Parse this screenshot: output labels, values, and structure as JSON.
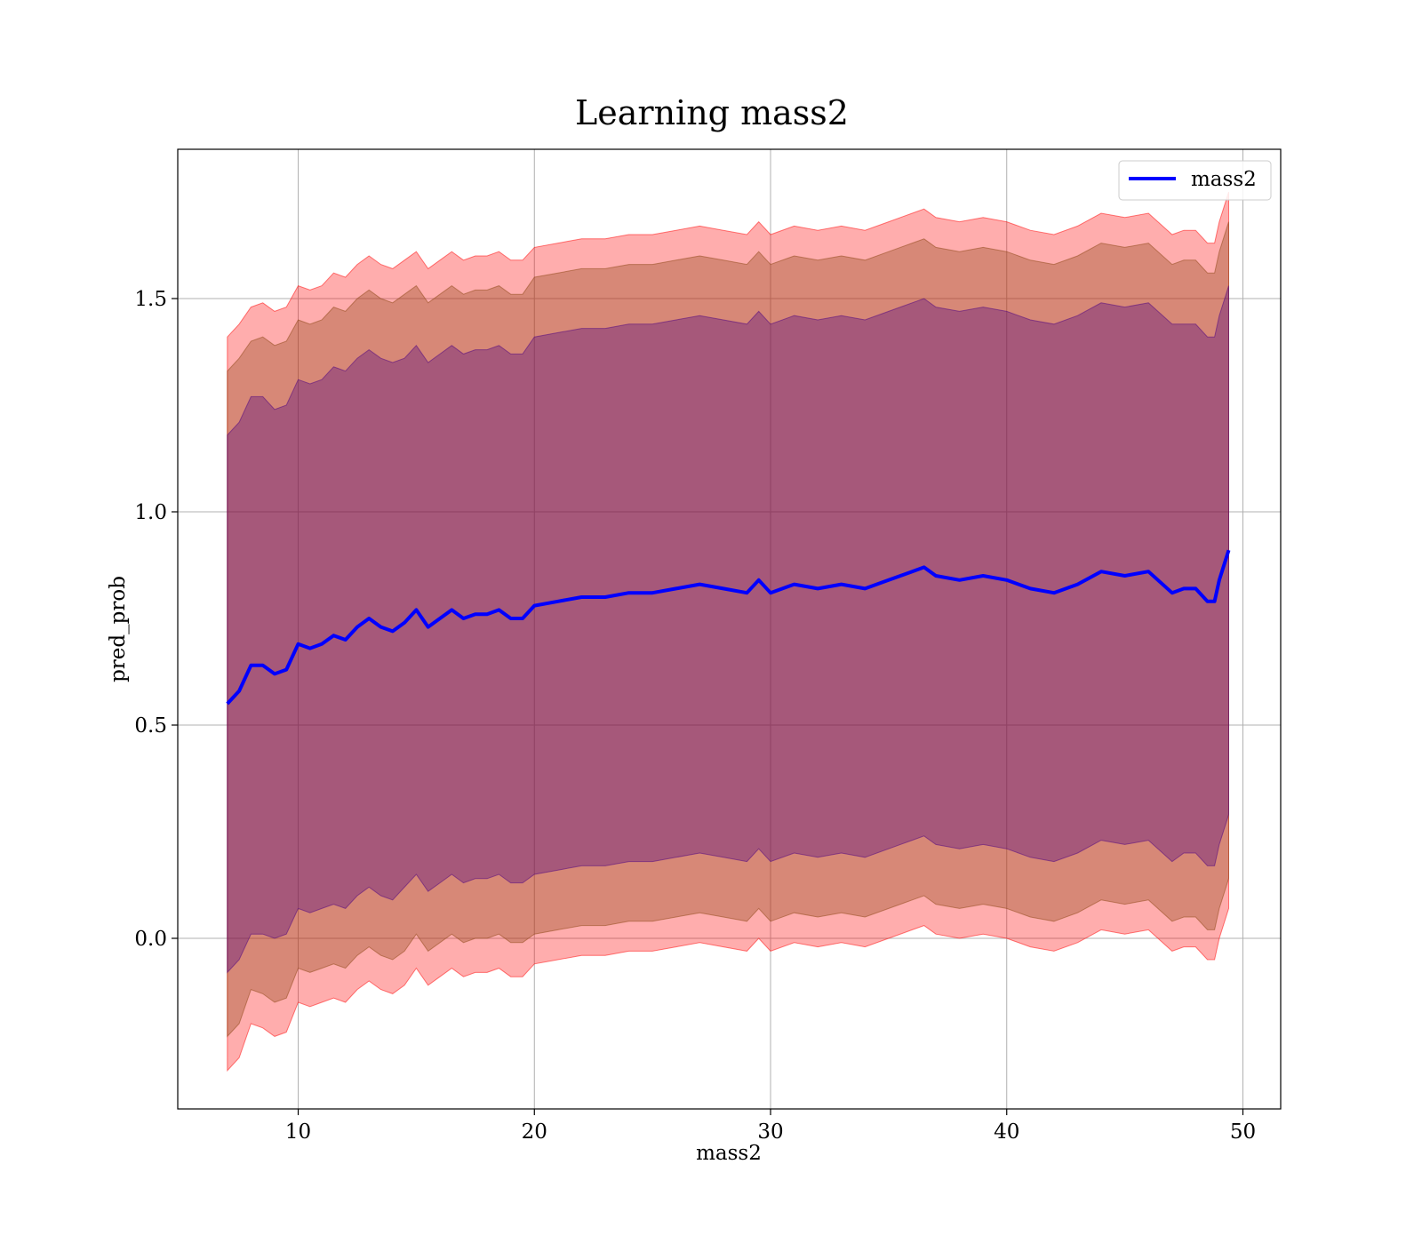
{
  "chart_data": {
    "type": "line",
    "title": "Learning mass2",
    "xlabel": "mass2",
    "ylabel": "pred_prob",
    "xlim": [
      4.9,
      51.6
    ],
    "ylim": [
      -0.4,
      1.85
    ],
    "xticks": [
      10,
      20,
      30,
      40,
      50
    ],
    "yticks": [
      0.0,
      0.5,
      1.0,
      1.5
    ],
    "xtick_labels": [
      "10",
      "20",
      "30",
      "40",
      "50"
    ],
    "ytick_labels": [
      "0.0",
      "0.5",
      "1.0",
      "1.5"
    ],
    "grid": true,
    "legend": {
      "position": "top-right",
      "entries": [
        "mass2"
      ]
    },
    "colors": {
      "line": "#0000ff",
      "band_outer": "#ff0000",
      "band_middle": "#8b4513",
      "band_inner": "#4b0082",
      "grid": "#b0b0b0",
      "frame": "#000000"
    },
    "series": [
      {
        "name": "mass2",
        "x": [
          7.0,
          7.5,
          8.0,
          8.5,
          9.0,
          9.5,
          10.0,
          10.5,
          11.0,
          11.5,
          12.0,
          12.5,
          13.0,
          13.5,
          14.0,
          14.5,
          15.0,
          15.5,
          16.0,
          16.5,
          17.0,
          17.5,
          18.0,
          18.5,
          19.0,
          19.5,
          20.0,
          21.0,
          22.0,
          23.0,
          24.0,
          25.0,
          26.0,
          27.0,
          28.0,
          29.0,
          29.5,
          30.0,
          31.0,
          32.0,
          33.0,
          34.0,
          35.0,
          36.0,
          36.5,
          37.0,
          38.0,
          39.0,
          40.0,
          41.0,
          42.0,
          43.0,
          44.0,
          45.0,
          46.0,
          47.0,
          47.5,
          48.0,
          48.5,
          48.8,
          49.0,
          49.4
        ],
        "y": [
          0.55,
          0.58,
          0.64,
          0.64,
          0.62,
          0.63,
          0.69,
          0.68,
          0.69,
          0.71,
          0.7,
          0.73,
          0.75,
          0.73,
          0.72,
          0.74,
          0.77,
          0.73,
          0.75,
          0.77,
          0.75,
          0.76,
          0.76,
          0.77,
          0.75,
          0.75,
          0.78,
          0.79,
          0.8,
          0.8,
          0.81,
          0.81,
          0.82,
          0.83,
          0.82,
          0.81,
          0.84,
          0.81,
          0.83,
          0.82,
          0.83,
          0.82,
          0.84,
          0.86,
          0.87,
          0.85,
          0.84,
          0.85,
          0.84,
          0.82,
          0.81,
          0.83,
          0.86,
          0.85,
          0.86,
          0.81,
          0.82,
          0.82,
          0.79,
          0.79,
          0.84,
          0.91
        ],
        "bands": [
          {
            "level": "outer",
            "half_width": [
              0.86,
              0.86,
              0.84,
              0.85,
              0.85,
              0.85,
              0.84,
              0.84,
              0.84,
              0.85,
              0.85,
              0.85,
              0.85,
              0.85,
              0.85,
              0.85,
              0.84,
              0.84,
              0.84,
              0.84,
              0.84,
              0.84,
              0.84,
              0.84,
              0.84,
              0.84,
              0.84,
              0.84,
              0.84,
              0.84,
              0.84,
              0.84,
              0.84,
              0.84,
              0.84,
              0.84,
              0.84,
              0.84,
              0.84,
              0.84,
              0.84,
              0.84,
              0.84,
              0.84,
              0.84,
              0.84,
              0.84,
              0.84,
              0.84,
              0.84,
              0.84,
              0.84,
              0.84,
              0.84,
              0.84,
              0.84,
              0.84,
              0.84,
              0.84,
              0.84,
              0.84,
              0.84
            ]
          },
          {
            "level": "middle",
            "half_width": [
              0.78,
              0.78,
              0.76,
              0.77,
              0.77,
              0.77,
              0.76,
              0.76,
              0.76,
              0.77,
              0.77,
              0.77,
              0.77,
              0.77,
              0.77,
              0.77,
              0.76,
              0.76,
              0.76,
              0.76,
              0.76,
              0.76,
              0.76,
              0.76,
              0.76,
              0.76,
              0.77,
              0.77,
              0.77,
              0.77,
              0.77,
              0.77,
              0.77,
              0.77,
              0.77,
              0.77,
              0.77,
              0.77,
              0.77,
              0.77,
              0.77,
              0.77,
              0.77,
              0.77,
              0.77,
              0.77,
              0.77,
              0.77,
              0.77,
              0.77,
              0.77,
              0.77,
              0.77,
              0.77,
              0.77,
              0.77,
              0.77,
              0.77,
              0.77,
              0.77,
              0.77,
              0.77
            ]
          },
          {
            "level": "inner",
            "half_width": [
              0.63,
              0.63,
              0.63,
              0.63,
              0.62,
              0.62,
              0.62,
              0.62,
              0.62,
              0.63,
              0.63,
              0.63,
              0.63,
              0.63,
              0.63,
              0.62,
              0.62,
              0.62,
              0.62,
              0.62,
              0.62,
              0.62,
              0.62,
              0.62,
              0.62,
              0.62,
              0.63,
              0.63,
              0.63,
              0.63,
              0.63,
              0.63,
              0.63,
              0.63,
              0.63,
              0.63,
              0.63,
              0.63,
              0.63,
              0.63,
              0.63,
              0.63,
              0.63,
              0.63,
              0.63,
              0.63,
              0.63,
              0.63,
              0.63,
              0.63,
              0.63,
              0.63,
              0.63,
              0.63,
              0.63,
              0.63,
              0.62,
              0.62,
              0.62,
              0.62,
              0.62,
              0.62
            ]
          }
        ]
      }
    ]
  }
}
